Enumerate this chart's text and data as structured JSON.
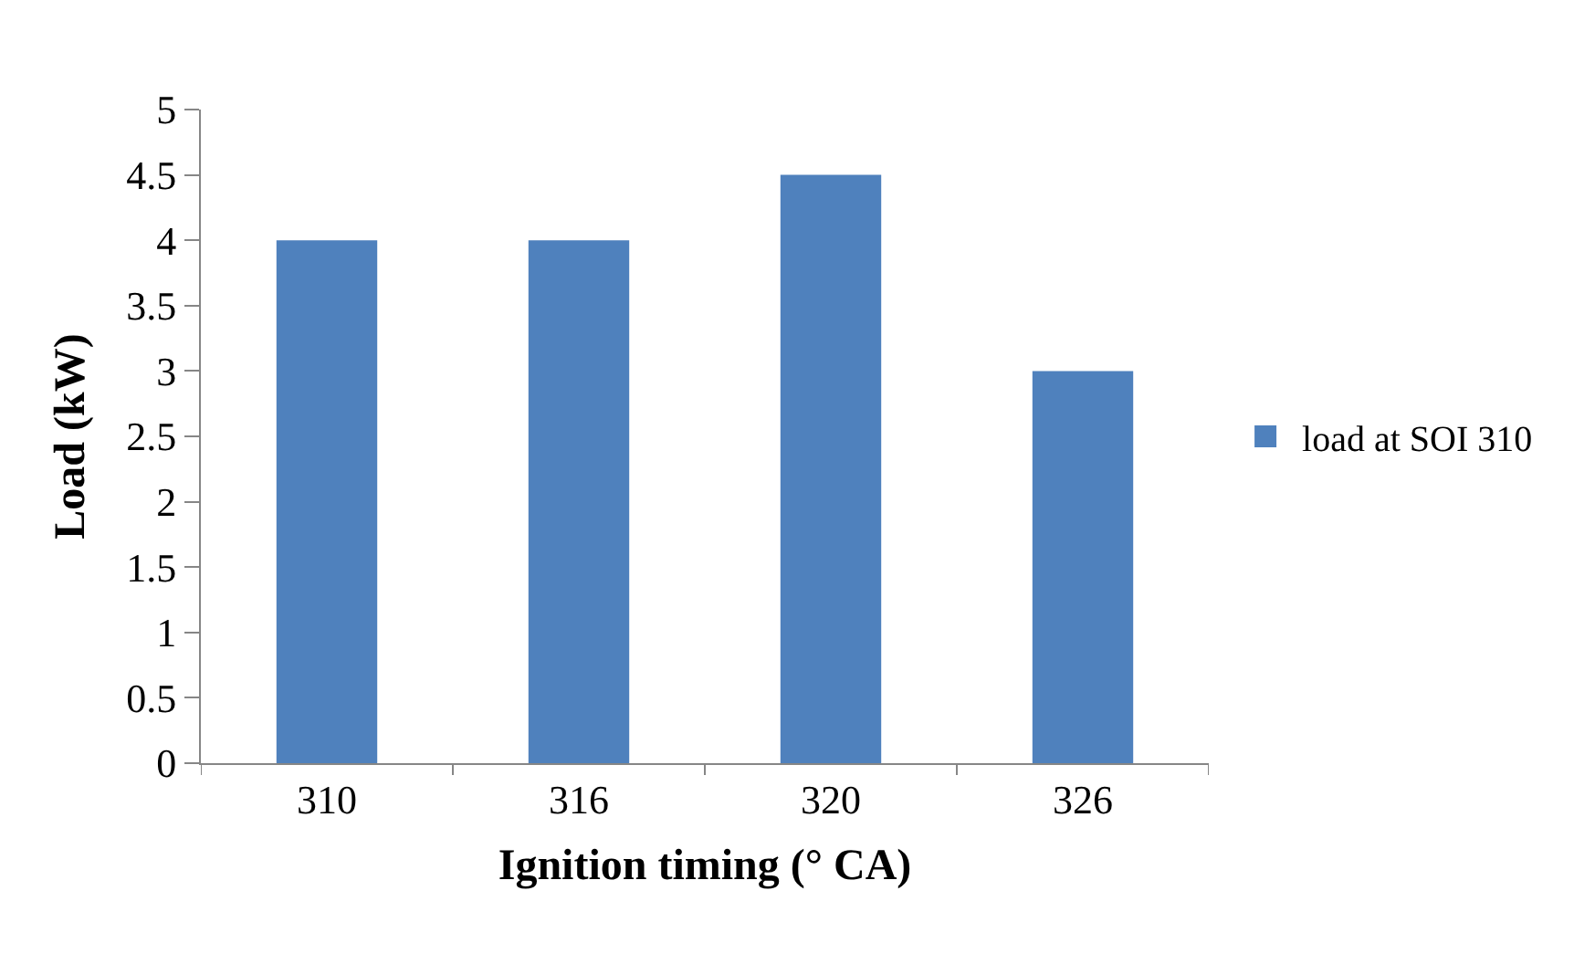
{
  "chart_data": {
    "type": "bar",
    "xlabel": "Ignition timing (° CA)",
    "ylabel": "Load (kW)",
    "categories": [
      "310",
      "316",
      "320",
      "326"
    ],
    "series": [
      {
        "name": "load at SOI 310",
        "color": "#4f81bd",
        "values": [
          4,
          4,
          4.5,
          3
        ]
      }
    ],
    "ylim": [
      0,
      5
    ],
    "yticks": [
      0,
      0.5,
      1,
      1.5,
      2,
      2.5,
      3,
      3.5,
      4,
      4.5,
      5
    ],
    "legend": "right"
  }
}
